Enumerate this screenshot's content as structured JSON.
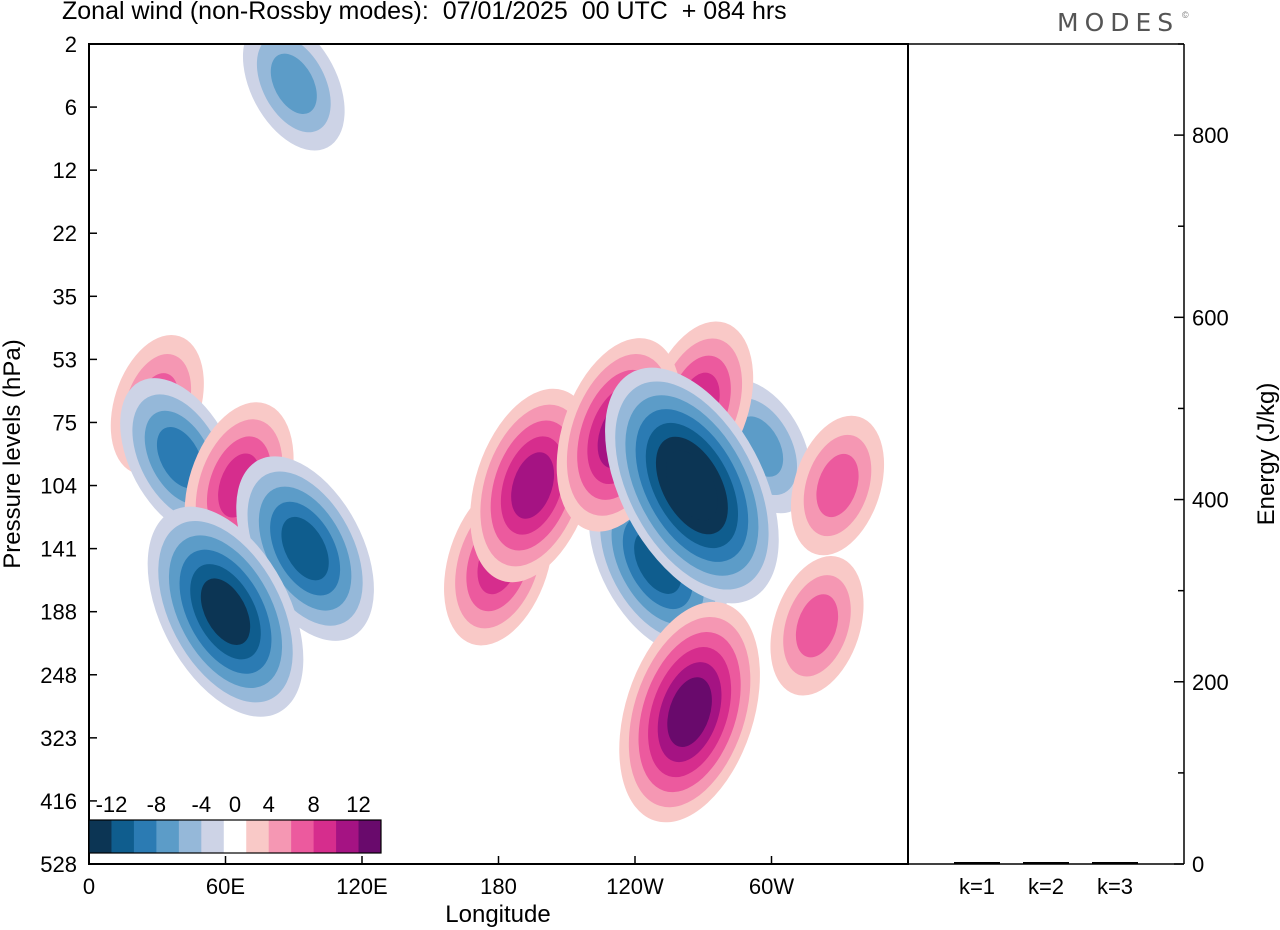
{
  "title": "Zonal wind (non-Rossby modes):  07/01/2025  00 UTC  + 084 hrs",
  "brand": "MODES",
  "brand_mark": "©",
  "chart_data": [
    {
      "type": "heatmap",
      "title": "Zonal wind (non-Rossby modes):  07/01/2025  00 UTC  + 084 hrs",
      "xlabel": "Longitude",
      "ylabel": "Pressure levels (hPa)",
      "x_ticks": [
        "0",
        "60E",
        "120E",
        "180",
        "120W",
        "60W"
      ],
      "x_tick_values": [
        0,
        60,
        120,
        180,
        240,
        300
      ],
      "xlim": [
        0,
        360
      ],
      "y_ticks": [
        "2",
        "6",
        "12",
        "22",
        "35",
        "53",
        "75",
        "104",
        "141",
        "188",
        "248",
        "323",
        "416",
        "528"
      ],
      "colorbar": {
        "labels": [
          "-12",
          "-8",
          "-4",
          "0",
          "4",
          "8",
          "12"
        ],
        "label_values": [
          -12,
          -8,
          -4,
          0,
          4,
          8,
          12
        ],
        "levels": [
          -14,
          -12,
          -10,
          -8,
          -6,
          -4,
          -2,
          2,
          4,
          6,
          8,
          10,
          12,
          14
        ],
        "colors": [
          "#0c3554",
          "#0f5d8e",
          "#2b7bb3",
          "#5c9cc8",
          "#95b8d9",
          "#cdd3e6",
          "#ffffff",
          "#f9c9c7",
          "#f597b3",
          "#ec5a9e",
          "#d62d8d",
          "#a51383",
          "#690a6c"
        ]
      },
      "features": [
        {
          "lon": 60,
          "level": 188,
          "value": -12
        },
        {
          "lon": 95,
          "level": 141,
          "value": -10
        },
        {
          "lon": 40,
          "level": 90,
          "value": -8
        },
        {
          "lon": 265,
          "level": 104,
          "value": -14
        },
        {
          "lon": 250,
          "level": 150,
          "value": -10
        },
        {
          "lon": 295,
          "level": 85,
          "value": -6
        },
        {
          "lon": 90,
          "level": 4,
          "value": -6
        },
        {
          "lon": 195,
          "level": 104,
          "value": 10
        },
        {
          "lon": 180,
          "level": 150,
          "value": 8
        },
        {
          "lon": 233,
          "level": 80,
          "value": 10
        },
        {
          "lon": 268,
          "level": 68,
          "value": 8
        },
        {
          "lon": 264,
          "level": 290,
          "value": 12
        },
        {
          "lon": 329,
          "level": 104,
          "value": 6
        },
        {
          "lon": 320,
          "level": 200,
          "value": 6
        },
        {
          "lon": 30,
          "level": 68,
          "value": 6
        },
        {
          "lon": 66,
          "level": 104,
          "value": 8
        }
      ]
    },
    {
      "type": "bar",
      "ylabel": "Energy (J/kg)",
      "categories": [
        "k=1",
        "k=2",
        "k=3"
      ],
      "values": [
        0.5,
        0.5,
        0.5
      ],
      "ylim": [
        0,
        900
      ],
      "y_ticks": [
        0,
        200,
        400,
        600,
        800
      ]
    }
  ]
}
